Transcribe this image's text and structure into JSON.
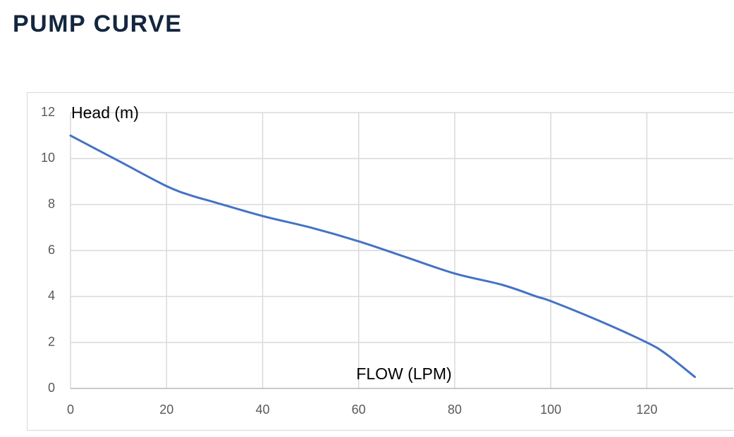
{
  "chart_data": {
    "type": "line",
    "title": "PUMP CURVE",
    "y_label": "Head (m)",
    "x_label": "FLOW (LPM)",
    "x": [
      0,
      10,
      20,
      25,
      30,
      40,
      50,
      60,
      70,
      80,
      90,
      97,
      100,
      110,
      120,
      124,
      130
    ],
    "series": [
      {
        "name": "Head",
        "color": "#4472c4",
        "values": [
          11,
          9.9,
          8.8,
          8.4,
          8.1,
          7.5,
          7.0,
          6.4,
          5.7,
          5.0,
          4.5,
          4.0,
          3.8,
          2.95,
          2.0,
          1.5,
          0.5
        ]
      }
    ],
    "xlim": [
      0,
      138
    ],
    "xticks": [
      0,
      20,
      40,
      60,
      80,
      100,
      120
    ],
    "ylim": [
      0,
      12
    ],
    "yticks": [
      0,
      2,
      4,
      6,
      8,
      10,
      12
    ],
    "grid": true
  }
}
